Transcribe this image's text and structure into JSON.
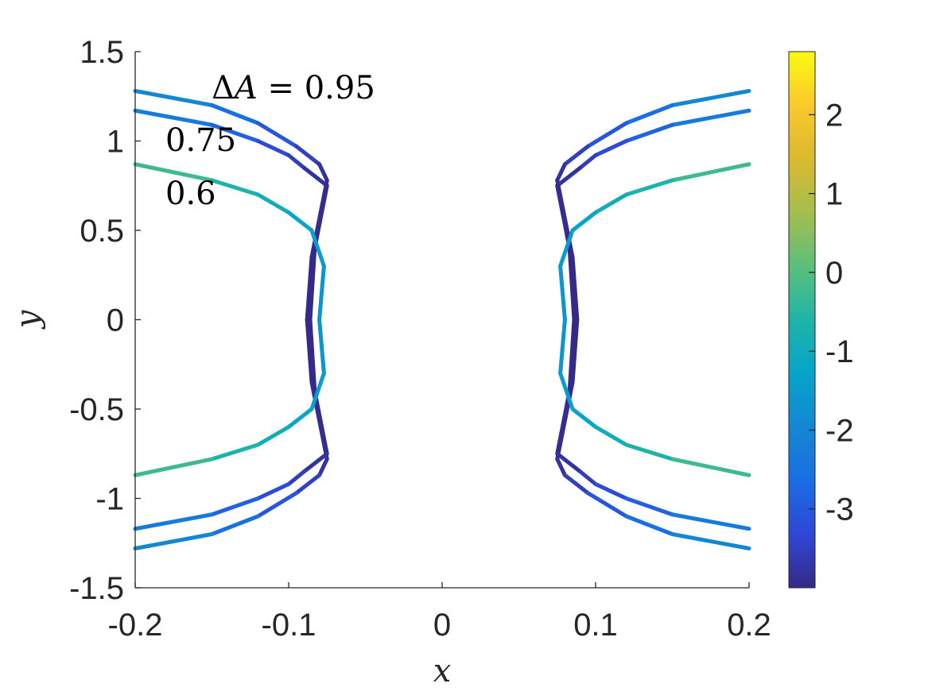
{
  "chart_data": {
    "type": "line",
    "title": "",
    "xlabel": "x",
    "ylabel": "y",
    "xlim": [
      -0.2,
      0.2
    ],
    "ylim": [
      -1.5,
      1.5
    ],
    "xticks": [
      "-0.2",
      "-0.1",
      "0",
      "0.1",
      "0.2"
    ],
    "yticks": [
      "1.5",
      "1",
      "0.5",
      "0",
      "-0.5",
      "-1",
      "-1.5"
    ],
    "grid": false,
    "colorbar": {
      "range": [
        -4,
        2.8
      ],
      "ticks": [
        "2",
        "1",
        "0",
        "-1",
        "-2",
        "-3"
      ],
      "colormap": "parula"
    },
    "annotations": [
      {
        "prefix": "Δ",
        "var": "A",
        "text": " = 0.95"
      },
      {
        "text": "0.75"
      },
      {
        "text": "0.6"
      }
    ],
    "series": [
      {
        "label": "0.95",
        "points": [
          [
            -0.2,
            1.28,
            -1.6
          ],
          [
            -0.15,
            1.2,
            -2.3
          ],
          [
            -0.12,
            1.1,
            -2.8
          ],
          [
            -0.095,
            0.97,
            -3.3
          ],
          [
            -0.08,
            0.87,
            -3.7
          ],
          [
            -0.075,
            0.78,
            -3.9
          ],
          [
            -0.085,
            0.35,
            -4.0
          ],
          [
            -0.088,
            0.0,
            -4.0
          ],
          [
            -0.085,
            -0.35,
            -4.0
          ],
          [
            -0.075,
            -0.78,
            -3.9
          ],
          [
            -0.08,
            -0.87,
            -3.7
          ],
          [
            -0.095,
            -0.97,
            -3.3
          ],
          [
            -0.12,
            -1.1,
            -2.8
          ],
          [
            -0.15,
            -1.2,
            -2.3
          ],
          [
            -0.2,
            -1.28,
            -1.6
          ]
        ]
      },
      {
        "label": "0.75",
        "points": [
          [
            -0.2,
            1.17,
            -2.0
          ],
          [
            -0.15,
            1.09,
            -2.6
          ],
          [
            -0.12,
            1.0,
            -3.1
          ],
          [
            -0.1,
            0.92,
            -3.4
          ],
          [
            -0.09,
            0.85,
            -3.7
          ],
          [
            -0.075,
            0.75,
            -3.9
          ],
          [
            -0.083,
            0.4,
            -4.0
          ],
          [
            -0.086,
            0.0,
            -4.0
          ],
          [
            -0.083,
            -0.4,
            -4.0
          ],
          [
            -0.075,
            -0.75,
            -3.9
          ],
          [
            -0.09,
            -0.85,
            -3.7
          ],
          [
            -0.1,
            -0.92,
            -3.4
          ],
          [
            -0.12,
            -1.0,
            -3.1
          ],
          [
            -0.15,
            -1.09,
            -2.6
          ],
          [
            -0.2,
            -1.17,
            -2.0
          ]
        ]
      },
      {
        "label": "0.6",
        "points": [
          [
            -0.2,
            0.87,
            0.0
          ],
          [
            -0.15,
            0.78,
            -0.5
          ],
          [
            -0.12,
            0.7,
            -0.8
          ],
          [
            -0.1,
            0.6,
            -1.1
          ],
          [
            -0.085,
            0.5,
            -1.4
          ],
          [
            -0.077,
            0.3,
            -1.6
          ],
          [
            -0.08,
            0.0,
            -1.7
          ],
          [
            -0.077,
            -0.3,
            -1.6
          ],
          [
            -0.085,
            -0.5,
            -1.4
          ],
          [
            -0.1,
            -0.6,
            -1.1
          ],
          [
            -0.12,
            -0.7,
            -0.8
          ],
          [
            -0.15,
            -0.78,
            -0.5
          ],
          [
            -0.2,
            -0.87,
            0.0
          ]
        ]
      }
    ]
  }
}
